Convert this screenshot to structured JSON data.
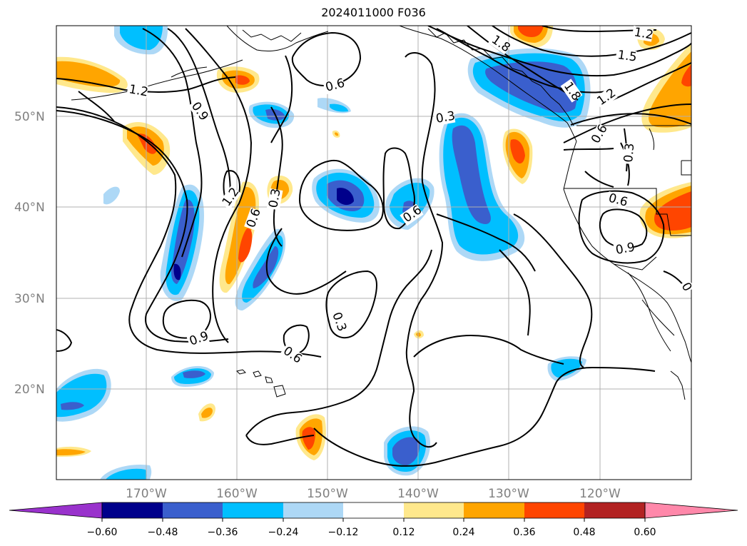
{
  "title": "2024011000 F036",
  "lat_labels": [
    "50°N",
    "40°N",
    "30°N",
    "20°N"
  ],
  "lon_labels": [
    "170°W",
    "160°W",
    "150°W",
    "140°W",
    "130°W",
    "120°W"
  ],
  "contour_labels": [
    "1.2",
    "0.9",
    "0.6",
    "0.3",
    "1.8",
    "1.5"
  ],
  "colorbar": {
    "ticks": [
      "−0.60",
      "−0.48",
      "−0.36",
      "−0.24",
      "−0.12",
      "0.12",
      "0.24",
      "0.36",
      "0.48",
      "0.60"
    ],
    "colors": {
      "below": "#9932cc",
      "c1": "#00008b",
      "c2": "#3a5fcd",
      "c3": "#00bfff",
      "c4": "#add8f6",
      "c5": "#ffffff",
      "c6": "#ffe88c",
      "c7": "#ffa500",
      "c8": "#ff4500",
      "c9": "#b22222",
      "above": "#ff88aa"
    }
  },
  "colors": {
    "grid": "#b0b0b0",
    "contour": "#000000",
    "coast": "#000000"
  }
}
